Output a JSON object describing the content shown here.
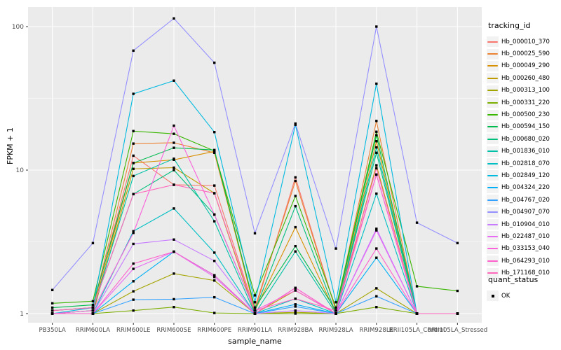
{
  "chart_data": {
    "type": "line",
    "title": "",
    "xlabel": "sample_name",
    "ylabel": "FPKM + 1",
    "y_scale": "log10",
    "y_ticks": [
      {
        "label": "100",
        "value": 100
      },
      {
        "label": "10",
        "value": 10
      },
      {
        "label": "1",
        "value": 1
      }
    ],
    "y_minor_breaks": [
      3.1623,
      31.623
    ],
    "ylim": [
      0.93,
      130
    ],
    "grid": "on",
    "legend_position": "right",
    "panel_bg": "#EBEBEB",
    "grid_color": "#FFFFFF",
    "tick_label_color": "#4D4D4D",
    "marker": "black-square",
    "categories": [
      "PB350LA",
      "RRIM600LA",
      "RRIM600LE",
      "RRIM600SE",
      "RRIM600PE",
      "RRIM901LA",
      "RRIM928BA",
      "RRIM928LA",
      "RRIM928LE",
      "RRII105LA_Control",
      "RRII105LA_Stressed"
    ],
    "series": [
      {
        "name": "Hb_000010_370",
        "color": "#F8766D",
        "values": [
          1.05,
          1.1,
          12.6,
          7.9,
          7.8,
          1.05,
          8.9,
          1.05,
          9.3,
          1.0,
          1.0
        ]
      },
      {
        "name": "Hb_000025_590",
        "color": "#EB8335",
        "values": [
          1.05,
          1.1,
          15.3,
          15.5,
          13.2,
          1.1,
          8.4,
          1.05,
          22.0,
          1.0,
          1.0
        ]
      },
      {
        "name": "Hb_000049_290",
        "color": "#D89000",
        "values": [
          1.0,
          1.05,
          11.2,
          11.8,
          13.5,
          1.05,
          4.0,
          1.0,
          15.9,
          1.0,
          1.0
        ]
      },
      {
        "name": "Hb_000260_480",
        "color": "#C09B00",
        "values": [
          1.0,
          1.0,
          10.2,
          10.4,
          6.9,
          1.0,
          1.45,
          1.0,
          10.8,
          1.0,
          1.0
        ]
      },
      {
        "name": "Hb_000313_100",
        "color": "#A3A500",
        "values": [
          1.0,
          1.0,
          1.43,
          1.9,
          1.7,
          1.0,
          1.02,
          1.0,
          1.5,
          1.0,
          1.0
        ]
      },
      {
        "name": "Hb_000331_220",
        "color": "#7CAE00",
        "values": [
          1.0,
          1.0,
          1.05,
          1.11,
          1.01,
          1.0,
          1.0,
          1.0,
          1.11,
          1.0,
          1.0
        ]
      },
      {
        "name": "Hb_000500_230",
        "color": "#39B600",
        "values": [
          1.18,
          1.22,
          18.7,
          17.9,
          13.6,
          1.34,
          6.6,
          1.1,
          18.5,
          1.55,
          1.44
        ]
      },
      {
        "name": "Hb_000594_150",
        "color": "#00BB4E",
        "values": [
          1.1,
          1.15,
          11.2,
          14.3,
          13.8,
          1.1,
          2.95,
          1.05,
          17.5,
          1.0,
          1.0
        ]
      },
      {
        "name": "Hb_000680_020",
        "color": "#00BF7D",
        "values": [
          1.05,
          1.1,
          6.8,
          10.0,
          4.9,
          1.05,
          5.6,
          1.0,
          13.2,
          1.0,
          1.0
        ]
      },
      {
        "name": "Hb_001836_010",
        "color": "#00C1A7",
        "values": [
          1.0,
          1.05,
          9.1,
          12.0,
          4.4,
          1.0,
          2.71,
          1.0,
          14.4,
          1.0,
          1.0
        ]
      },
      {
        "name": "Hb_002818_070",
        "color": "#00BFC4",
        "values": [
          1.0,
          1.0,
          3.75,
          5.4,
          2.66,
          1.0,
          1.27,
          1.0,
          6.85,
          1.0,
          1.0
        ]
      },
      {
        "name": "Hb_002849_120",
        "color": "#00BAE0",
        "values": [
          1.0,
          1.1,
          34,
          42,
          18.4,
          1.2,
          20.7,
          1.2,
          40,
          1.0,
          1.0
        ]
      },
      {
        "name": "Hb_004324_220",
        "color": "#00B0F6",
        "values": [
          1.0,
          1.0,
          1.68,
          2.7,
          1.85,
          1.0,
          1.16,
          1.0,
          2.45,
          1.0,
          1.0
        ]
      },
      {
        "name": "Hb_004767_020",
        "color": "#35A2FF",
        "values": [
          1.0,
          1.0,
          1.25,
          1.26,
          1.3,
          1.0,
          1.12,
          1.0,
          1.32,
          1.0,
          1.0
        ]
      },
      {
        "name": "Hb_004907_070",
        "color": "#9590FF",
        "values": [
          1.46,
          3.1,
          68,
          114,
          56,
          3.63,
          21.1,
          2.84,
          100,
          4.3,
          3.1
        ]
      },
      {
        "name": "Hb_010904_010",
        "color": "#C77CFF",
        "values": [
          1.0,
          1.0,
          3.06,
          3.28,
          2.33,
          1.0,
          1.05,
          1.0,
          3.9,
          1.0,
          1.0
        ]
      },
      {
        "name": "Hb_022487_010",
        "color": "#E76BF3",
        "values": [
          1.0,
          1.0,
          2.05,
          2.7,
          1.8,
          1.0,
          1.51,
          1.0,
          3.8,
          1.0,
          1.0
        ]
      },
      {
        "name": "Hb_033153_040",
        "color": "#FA62DB",
        "values": [
          1.0,
          1.05,
          3.65,
          20.4,
          4.9,
          1.05,
          1.45,
          1.0,
          9.3,
          1.0,
          1.0
        ]
      },
      {
        "name": "Hb_064293_010",
        "color": "#FF61CC",
        "values": [
          1.0,
          1.0,
          2.23,
          2.7,
          1.85,
          1.0,
          1.51,
          1.0,
          2.84,
          1.0,
          1.0
        ]
      },
      {
        "name": "Hb_171168_010",
        "color": "#FF67BC",
        "values": [
          1.05,
          1.1,
          6.8,
          7.9,
          6.9,
          1.05,
          1.27,
          1.05,
          10.3,
          1.0,
          1.0
        ]
      }
    ]
  },
  "legend": {
    "tracking_title": "tracking_id",
    "quant_title": "quant_status",
    "quant_items": [
      {
        "label": "OK"
      }
    ]
  },
  "axes": {
    "x_title": "sample_name",
    "y_title": "FPKM + 1"
  }
}
